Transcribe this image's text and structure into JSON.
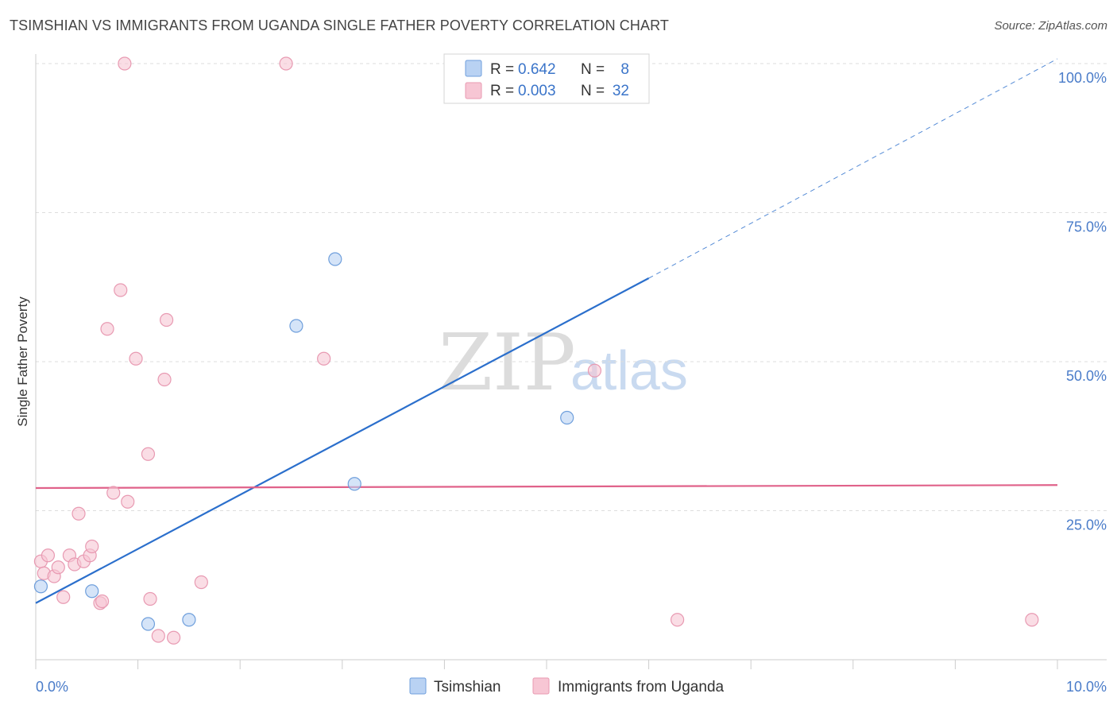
{
  "header": {
    "title": "TSIMSHIAN VS IMMIGRANTS FROM UGANDA SINGLE FATHER POVERTY CORRELATION CHART",
    "source": "Source: ZipAtlas.com"
  },
  "watermark": {
    "zip": "ZIP",
    "atlas": "atlas"
  },
  "colors": {
    "blue_fill": "#b9d2f3",
    "blue_stroke": "#6f9fdc",
    "blue_line": "#2b6fcc",
    "pink_fill": "#f7c6d4",
    "pink_stroke": "#e89ab2",
    "pink_line": "#e0628a",
    "tick_label": "#4a7cc9",
    "grid": "#dddddd"
  },
  "legend": {
    "rows": [
      {
        "r_label": "R =",
        "r_value": "0.642",
        "n_label": "N =",
        "n_value": "8"
      },
      {
        "r_label": "R =",
        "r_value": "0.003",
        "n_label": "N =",
        "n_value": "32"
      }
    ]
  },
  "bottom_legend": [
    "Tsimshian",
    "Immigrants from Uganda"
  ],
  "chart_data": {
    "type": "scatter",
    "title": "TSIMSHIAN VS IMMIGRANTS FROM UGANDA SINGLE FATHER POVERTY CORRELATION CHART",
    "xlabel": "",
    "ylabel": "Single Father Poverty",
    "xlim": [
      0,
      10
    ],
    "ylim": [
      0,
      103
    ],
    "x_ticks": [
      0,
      1,
      2,
      3,
      4,
      5,
      6,
      7,
      8,
      9,
      10
    ],
    "x_tick_labels": [
      {
        "value": 0,
        "label": "0.0%"
      },
      {
        "value": 10,
        "label": "10.0%"
      }
    ],
    "y_gridlines": [
      25,
      50,
      75,
      100
    ],
    "y_tick_labels": [
      {
        "value": 100,
        "label": "100.0%"
      },
      {
        "value": 75,
        "label": "75.0%"
      },
      {
        "value": 50,
        "label": "50.0%"
      },
      {
        "value": 25,
        "label": "25.0%"
      }
    ],
    "series": [
      {
        "name": "Tsimshian",
        "color": "blue",
        "points": [
          {
            "x": 0.05,
            "y": 12.3
          },
          {
            "x": 0.55,
            "y": 11.5
          },
          {
            "x": 1.1,
            "y": 6.0
          },
          {
            "x": 1.5,
            "y": 6.7
          },
          {
            "x": 2.55,
            "y": 56.0
          },
          {
            "x": 2.93,
            "y": 67.2
          },
          {
            "x": 3.12,
            "y": 29.5
          },
          {
            "x": 5.2,
            "y": 40.6
          }
        ],
        "trend": {
          "x0": 0.0,
          "y0": 9.5,
          "x1": 6.0,
          "y1": 64.0,
          "x_dash_end": 10.0,
          "y_dash_end": 100.8
        }
      },
      {
        "name": "Immigrants from Uganda",
        "color": "pink",
        "points": [
          {
            "x": 0.05,
            "y": 16.5
          },
          {
            "x": 0.08,
            "y": 14.5
          },
          {
            "x": 0.12,
            "y": 17.5
          },
          {
            "x": 0.18,
            "y": 14.0
          },
          {
            "x": 0.22,
            "y": 15.5
          },
          {
            "x": 0.27,
            "y": 10.5
          },
          {
            "x": 0.33,
            "y": 17.5
          },
          {
            "x": 0.38,
            "y": 16.0
          },
          {
            "x": 0.42,
            "y": 24.5
          },
          {
            "x": 0.47,
            "y": 16.5
          },
          {
            "x": 0.53,
            "y": 17.5
          },
          {
            "x": 0.55,
            "y": 19.0
          },
          {
            "x": 0.63,
            "y": 9.5
          },
          {
            "x": 0.65,
            "y": 9.8
          },
          {
            "x": 0.7,
            "y": 55.5
          },
          {
            "x": 0.76,
            "y": 28.0
          },
          {
            "x": 0.83,
            "y": 62.0
          },
          {
            "x": 0.87,
            "y": 100.0
          },
          {
            "x": 0.9,
            "y": 26.5
          },
          {
            "x": 0.98,
            "y": 50.5
          },
          {
            "x": 1.1,
            "y": 34.5
          },
          {
            "x": 1.12,
            "y": 10.2
          },
          {
            "x": 1.2,
            "y": 4.0
          },
          {
            "x": 1.26,
            "y": 47.0
          },
          {
            "x": 1.28,
            "y": 57.0
          },
          {
            "x": 1.35,
            "y": 3.7
          },
          {
            "x": 1.62,
            "y": 13.0
          },
          {
            "x": 2.45,
            "y": 100.0
          },
          {
            "x": 2.82,
            "y": 50.5
          },
          {
            "x": 5.47,
            "y": 48.5
          },
          {
            "x": 6.28,
            "y": 6.7
          },
          {
            "x": 9.75,
            "y": 6.7
          }
        ],
        "trend": {
          "x0": 0.0,
          "y0": 28.8,
          "x1": 10.0,
          "y1": 29.3
        }
      }
    ]
  }
}
